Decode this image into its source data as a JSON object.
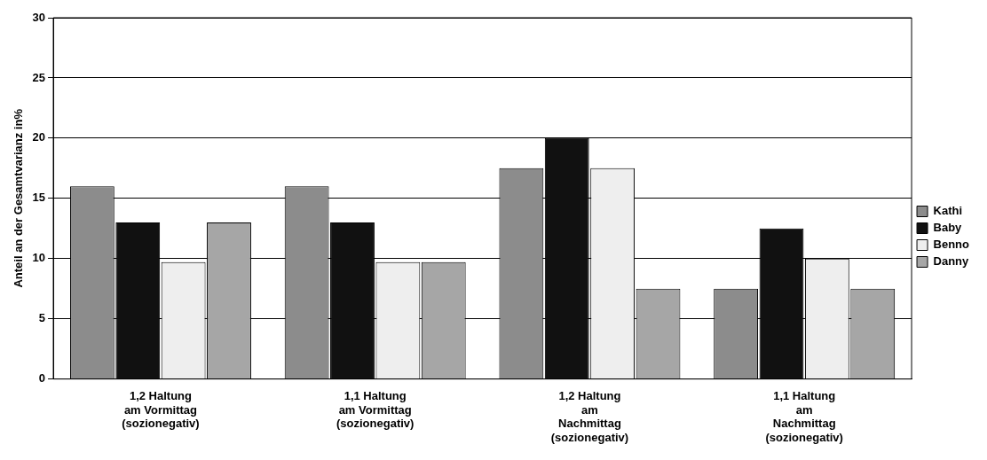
{
  "chart_data": {
    "type": "bar",
    "ylabel": "Anteil an der Gesamtvarianz in%",
    "categories": [
      "1,2 Haltung am Vormittag (sozionegativ)",
      "1,1 Haltung am Vormittag (sozionegativ)",
      "1,2 Haltung am Nachmittag (sozionegativ)",
      "1,1 Haltung am Nachmittag (sozionegativ)"
    ],
    "series": [
      {
        "name": "Kathi",
        "color": "#8c8c8c",
        "values": [
          16,
          16,
          17.5,
          7.5
        ]
      },
      {
        "name": "Baby",
        "color": "#111111",
        "values": [
          13,
          13,
          20,
          12.5
        ]
      },
      {
        "name": "Benno",
        "color": "#eeeeee",
        "values": [
          9.7,
          9.7,
          17.5,
          10
        ]
      },
      {
        "name": "Danny",
        "color": "#a6a6a6",
        "values": [
          13,
          9.7,
          7.5,
          7.5
        ]
      }
    ],
    "ylim": [
      0,
      30
    ],
    "yticks": [
      0,
      5,
      10,
      15,
      20,
      25,
      30
    ],
    "grid": "y",
    "legend": "right"
  }
}
